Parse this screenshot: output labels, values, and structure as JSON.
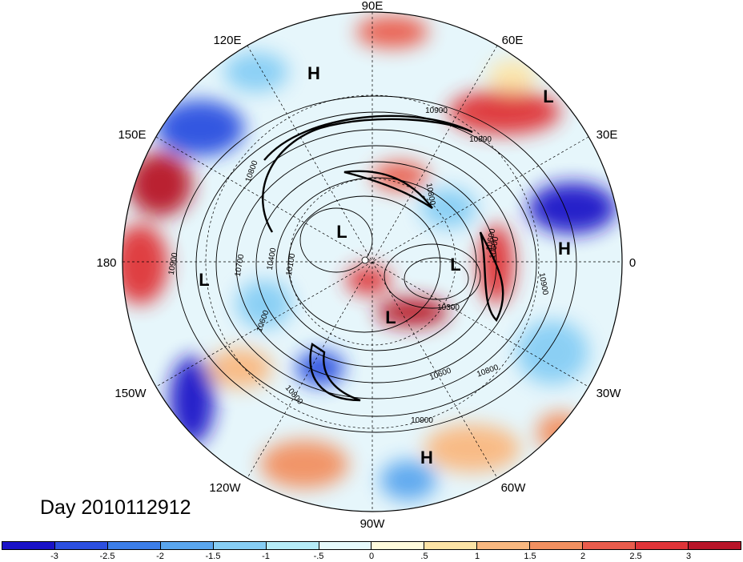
{
  "longitude_labels": {
    "e90": "90E",
    "e60": "60E",
    "e30": "30E",
    "e0": "0",
    "w30": "30W",
    "w60": "60W",
    "w90": "90W",
    "w120": "120W",
    "w150": "150W",
    "d180": "180",
    "e150": "150E",
    "e120": "120E"
  },
  "pressure_centers": [
    "H",
    "L",
    "H",
    "L",
    "L",
    "L",
    "L",
    "H"
  ],
  "contour_labels": [
    "10900",
    "10800",
    "10600",
    "10900",
    "10800",
    "10700",
    "10400",
    "10100",
    "10600",
    "10800",
    "10900",
    "10600",
    "10800",
    "10300",
    "10800",
    "10600",
    "10900"
  ],
  "day_label": "Day 2010112912",
  "colorbar": {
    "colors": [
      "#1a12c8",
      "#2c4fe0",
      "#3c7ee8",
      "#5aa6ee",
      "#86cdf4",
      "#b6ecf8",
      "#e6fafc",
      "#fffbdc",
      "#fde4a6",
      "#f9b880",
      "#f29060",
      "#ea5c4c",
      "#df3438",
      "#b81428"
    ],
    "tick_labels": [
      "-3",
      "-2.5",
      "-2",
      "-1.5",
      "-1",
      "-.5",
      "0",
      ".5",
      "1",
      "1.5",
      "2",
      "2.5",
      "3"
    ]
  }
}
